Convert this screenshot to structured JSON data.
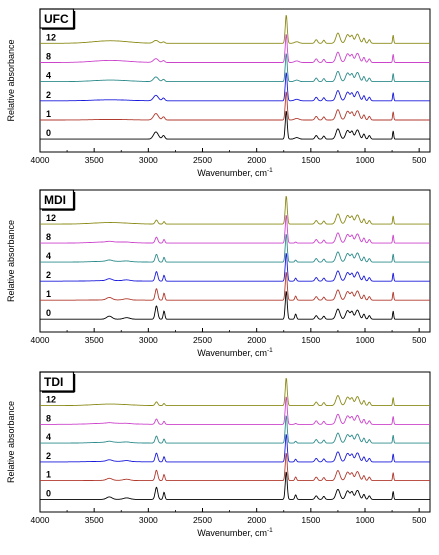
{
  "chart_data": [
    {
      "type": "line",
      "title": "UFC",
      "xlabel": "Wavenumber, cm",
      "xlabel_sup": "-1",
      "ylabel": "Relative absorbance",
      "xlim": [
        4000,
        400
      ],
      "x_reversed": true,
      "xticks": [
        4000,
        3500,
        3000,
        2500,
        2000,
        1500,
        1000,
        500
      ],
      "grid": false,
      "series": [
        {
          "name": "0",
          "color": "#000000",
          "offset": 0
        },
        {
          "name": "1",
          "color": "#b03a2e",
          "offset": 1
        },
        {
          "name": "2",
          "color": "#1a1adb",
          "offset": 2
        },
        {
          "name": "4",
          "color": "#2e8b8b",
          "offset": 3
        },
        {
          "name": "8",
          "color": "#cc44cc",
          "offset": 4
        },
        {
          "name": "12",
          "color": "#8b8b1a",
          "offset": 5
        }
      ]
    },
    {
      "type": "line",
      "title": "MDI",
      "xlabel": "Wavenumber, cm",
      "xlabel_sup": "-1",
      "ylabel": "Relative absorbance",
      "xlim": [
        4000,
        400
      ],
      "x_reversed": true,
      "xticks": [
        4000,
        3500,
        3000,
        2500,
        2000,
        1500,
        1000,
        500
      ],
      "grid": false,
      "series": [
        {
          "name": "0",
          "color": "#000000",
          "offset": 0
        },
        {
          "name": "1",
          "color": "#b03a2e",
          "offset": 1
        },
        {
          "name": "2",
          "color": "#1a1adb",
          "offset": 2
        },
        {
          "name": "4",
          "color": "#2e8b8b",
          "offset": 3
        },
        {
          "name": "8",
          "color": "#cc44cc",
          "offset": 4
        },
        {
          "name": "12",
          "color": "#8b8b1a",
          "offset": 5
        }
      ]
    },
    {
      "type": "line",
      "title": "TDI",
      "xlabel": "Wavenumber, cm",
      "xlabel_sup": "-1",
      "ylabel": "Relative absorbance",
      "xlim": [
        4000,
        400
      ],
      "x_reversed": true,
      "xticks": [
        4000,
        3500,
        3000,
        2500,
        2000,
        1500,
        1000,
        500
      ],
      "grid": false,
      "series": [
        {
          "name": "0",
          "color": "#000000",
          "offset": 0
        },
        {
          "name": "1",
          "color": "#b03a2e",
          "offset": 1
        },
        {
          "name": "2",
          "color": "#1a1adb",
          "offset": 2
        },
        {
          "name": "4",
          "color": "#2e8b8b",
          "offset": 3
        },
        {
          "name": "8",
          "color": "#cc44cc",
          "offset": 4
        },
        {
          "name": "12",
          "color": "#8b8b1a",
          "offset": 5
        }
      ]
    }
  ]
}
